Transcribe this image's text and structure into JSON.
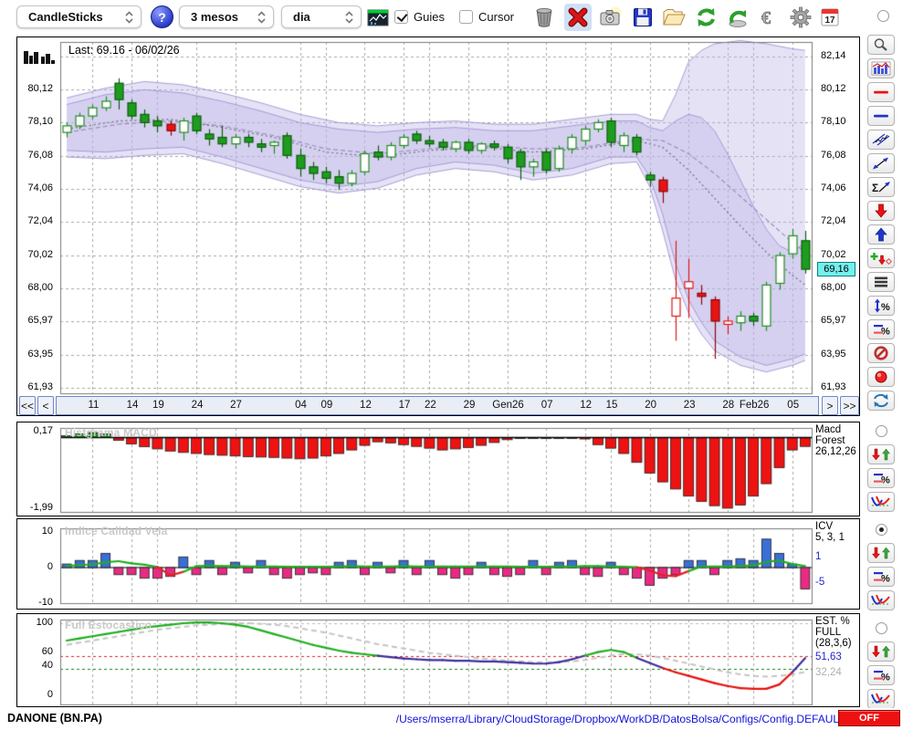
{
  "toolbar": {
    "chart_type": "CandleSticks",
    "period": "3 mesos",
    "interval": "dia",
    "help_label": "?",
    "guies_label": "Guies",
    "cursor_label": "Cursor"
  },
  "main_chart": {
    "last_label": "Last: 69.16 - 06/02/26",
    "last_price_tag": "69,16",
    "y_ticks": [
      {
        "label": "82,14",
        "v": 82.14,
        "right_only": true
      },
      {
        "label": "80,12",
        "v": 80.12
      },
      {
        "label": "78,10",
        "v": 78.1
      },
      {
        "label": "76,08",
        "v": 76.08
      },
      {
        "label": "74,06",
        "v": 74.06
      },
      {
        "label": "72,04",
        "v": 72.04
      },
      {
        "label": "70,02",
        "v": 70.02
      },
      {
        "label": "68,00",
        "v": 68.0
      },
      {
        "label": "65,97",
        "v": 65.97
      },
      {
        "label": "63,95",
        "v": 63.95
      },
      {
        "label": "61,93",
        "v": 61.93
      }
    ]
  },
  "date_nav": {
    "fast_back": "<<",
    "back": "<",
    "forward": ">",
    "fast_forward": ">>"
  },
  "macd_panel": {
    "title": "Histgrama MACD",
    "ticks": [
      {
        "label": "0,17",
        "v": 0.17
      },
      {
        "label": "-1,99",
        "v": -1.99
      }
    ],
    "right_lines": [
      "Macd",
      "Forest",
      "26,12,26"
    ]
  },
  "icv_panel": {
    "title": "Indice Calidad Vela",
    "ticks": [
      {
        "label": "10",
        "v": 10
      },
      {
        "label": "0",
        "v": 0
      },
      {
        "label": "-10",
        "v": -10
      }
    ],
    "right_lines": [
      "ICV",
      "5, 3, 1"
    ],
    "upper_label": "1",
    "lower_label": "-5"
  },
  "stoch_panel": {
    "title": "Full Estocastico",
    "ticks": [
      {
        "label": "100",
        "v": 100
      },
      {
        "label": "60",
        "v": 60
      },
      {
        "label": "40",
        "v": 40
      },
      {
        "label": "0",
        "v": 0
      }
    ],
    "right_lines": [
      "EST. %",
      "FULL",
      "(28,3,6)"
    ],
    "value_main": "51,63",
    "value_signal": "32,24"
  },
  "statusbar": {
    "symbol": "DANONE (BN.PA)",
    "config_path": "/Users/mserra/Library/CloudStorage/Dropbox/WorkDB/DatosBolsa/Configs/Config.DEFAULT.xml",
    "off_label": "OFF"
  },
  "colors": {
    "candle_green": "#1e9c1e",
    "candle_red": "#e81414",
    "band_purple": "#beb6eb",
    "bar_blue": "#3a6fd8",
    "bar_magenta": "#e82a84",
    "line_green": "#1fae1f",
    "line_blue": "#3a2f9e",
    "line_red": "#e81111",
    "tag_cyan": "#74efec",
    "path_blue": "#1111dd",
    "off_red": "#ee1111"
  },
  "chart_data": {
    "type": "candlestick",
    "title": "DANONE (BN.PA) daily, 3 months",
    "ylim_price": [
      61.93,
      82.14
    ],
    "ylim_macd": [
      -2.15,
      0.27
    ],
    "ylim_icv": [
      -11,
      11
    ],
    "ylim_stoch": [
      0,
      105
    ],
    "x_ticks": [
      {
        "label": "11",
        "i": 2
      },
      {
        "label": "14",
        "i": 5
      },
      {
        "label": "19",
        "i": 7
      },
      {
        "label": "24",
        "i": 10
      },
      {
        "label": "27",
        "i": 13
      },
      {
        "label": "04",
        "i": 18
      },
      {
        "label": "09",
        "i": 20
      },
      {
        "label": "12",
        "i": 23
      },
      {
        "label": "17",
        "i": 26
      },
      {
        "label": "22",
        "i": 28
      },
      {
        "label": "29",
        "i": 31
      },
      {
        "label": "Gen26",
        "i": 34
      },
      {
        "label": "07",
        "i": 37
      },
      {
        "label": "12",
        "i": 40
      },
      {
        "label": "15",
        "i": 42
      },
      {
        "label": "20",
        "i": 45
      },
      {
        "label": "23",
        "i": 48
      },
      {
        "label": "28",
        "i": 51
      },
      {
        "label": "Feb26",
        "i": 53
      },
      {
        "label": "05",
        "i": 56
      }
    ],
    "candles": [
      [
        77.5,
        78.1,
        77.2,
        77.9,
        "G"
      ],
      [
        77.9,
        78.7,
        77.7,
        78.5,
        "G"
      ],
      [
        78.5,
        79.2,
        78.3,
        79.0,
        "G"
      ],
      [
        79.0,
        79.7,
        78.8,
        79.4,
        "G"
      ],
      [
        80.5,
        80.8,
        78.9,
        79.5,
        "g"
      ],
      [
        79.3,
        79.5,
        78.3,
        78.5,
        "g"
      ],
      [
        78.6,
        78.9,
        77.8,
        78.1,
        "g"
      ],
      [
        78.2,
        78.5,
        77.5,
        77.9,
        "g"
      ],
      [
        78.0,
        78.2,
        77.3,
        77.6,
        "r"
      ],
      [
        77.5,
        78.4,
        77.0,
        78.2,
        "G"
      ],
      [
        78.5,
        78.7,
        77.4,
        77.6,
        "g"
      ],
      [
        77.4,
        77.7,
        76.7,
        77.1,
        "g"
      ],
      [
        77.2,
        77.9,
        76.6,
        76.8,
        "g"
      ],
      [
        76.8,
        77.4,
        76.5,
        77.2,
        "G"
      ],
      [
        77.2,
        77.4,
        76.6,
        76.9,
        "g"
      ],
      [
        76.8,
        77.1,
        76.3,
        76.6,
        "g"
      ],
      [
        76.7,
        77.0,
        76.2,
        76.9,
        "G"
      ],
      [
        77.3,
        77.5,
        75.9,
        76.1,
        "g"
      ],
      [
        76.1,
        76.5,
        74.8,
        75.3,
        "g"
      ],
      [
        75.4,
        75.7,
        74.6,
        75.0,
        "g"
      ],
      [
        75.1,
        75.4,
        74.4,
        74.7,
        "g"
      ],
      [
        74.8,
        75.2,
        74.0,
        74.4,
        "g"
      ],
      [
        74.4,
        75.2,
        74.2,
        75.0,
        "G"
      ],
      [
        75.1,
        76.4,
        74.9,
        76.2,
        "G"
      ],
      [
        76.3,
        76.7,
        75.8,
        76.0,
        "g"
      ],
      [
        76.0,
        76.9,
        75.8,
        76.7,
        "G"
      ],
      [
        76.7,
        77.4,
        76.5,
        77.2,
        "G"
      ],
      [
        77.4,
        77.6,
        76.8,
        77.0,
        "g"
      ],
      [
        77.0,
        77.3,
        76.6,
        76.8,
        "g"
      ],
      [
        76.9,
        77.1,
        76.4,
        76.6,
        "g"
      ],
      [
        76.5,
        77.0,
        76.3,
        76.9,
        "G"
      ],
      [
        76.9,
        77.1,
        76.2,
        76.4,
        "g"
      ],
      [
        76.4,
        76.9,
        76.2,
        76.8,
        "G"
      ],
      [
        76.8,
        77.0,
        76.4,
        76.6,
        "g"
      ],
      [
        76.6,
        76.8,
        75.6,
        75.9,
        "g"
      ],
      [
        76.3,
        76.5,
        74.6,
        75.4,
        "g"
      ],
      [
        75.4,
        75.9,
        74.8,
        75.7,
        "G"
      ],
      [
        76.3,
        76.5,
        75.0,
        75.2,
        "g"
      ],
      [
        75.3,
        76.7,
        75.1,
        76.5,
        "G"
      ],
      [
        76.5,
        77.4,
        76.2,
        77.2,
        "G"
      ],
      [
        77.0,
        77.9,
        76.7,
        77.7,
        "G"
      ],
      [
        77.7,
        78.3,
        77.5,
        78.1,
        "G"
      ],
      [
        78.2,
        78.4,
        76.6,
        76.9,
        "g"
      ],
      [
        76.7,
        77.5,
        76.3,
        77.3,
        "G"
      ],
      [
        77.2,
        77.4,
        76.1,
        76.3,
        "g"
      ],
      [
        74.9,
        75.1,
        74.2,
        74.6,
        "g"
      ],
      [
        74.6,
        74.8,
        73.2,
        73.9,
        "r"
      ],
      [
        66.3,
        70.9,
        64.8,
        67.4,
        "R"
      ],
      [
        68.0,
        69.8,
        66.2,
        68.4,
        "R"
      ],
      [
        67.7,
        68.2,
        67.0,
        67.5,
        "r"
      ],
      [
        67.3,
        67.5,
        63.7,
        66.0,
        "r"
      ],
      [
        65.8,
        66.3,
        65.2,
        66.0,
        "R"
      ],
      [
        65.9,
        66.6,
        65.4,
        66.3,
        "G"
      ],
      [
        66.3,
        66.5,
        65.7,
        66.0,
        "g"
      ],
      [
        65.7,
        68.4,
        65.4,
        68.2,
        "G"
      ],
      [
        68.3,
        70.2,
        67.9,
        70.0,
        "G"
      ],
      [
        70.1,
        71.6,
        69.8,
        71.2,
        "G"
      ],
      [
        70.9,
        71.5,
        68.9,
        69.16,
        "g"
      ]
    ],
    "band_outer_upper": [
      [
        0,
        79.6
      ],
      [
        3,
        80.2
      ],
      [
        6,
        80.6
      ],
      [
        9,
        80.4
      ],
      [
        12,
        79.9
      ],
      [
        15,
        79.3
      ],
      [
        18,
        78.6
      ],
      [
        21,
        78.1
      ],
      [
        24,
        77.9
      ],
      [
        27,
        78.1
      ],
      [
        30,
        78.2
      ],
      [
        33,
        78.0
      ],
      [
        36,
        78.0
      ],
      [
        39,
        78.3
      ],
      [
        42,
        78.6
      ],
      [
        44,
        78.6
      ],
      [
        45,
        78.3
      ],
      [
        46,
        78.2
      ],
      [
        47,
        79.8
      ],
      [
        48,
        81.8
      ],
      [
        49,
        82.5
      ],
      [
        50,
        82.9
      ],
      [
        52,
        83.1
      ],
      [
        54,
        82.9
      ],
      [
        56,
        82.6
      ],
      [
        57,
        82.5
      ]
    ],
    "band_outer_lower": [
      [
        0,
        76.0
      ],
      [
        3,
        75.9
      ],
      [
        6,
        76.1
      ],
      [
        9,
        76.2
      ],
      [
        12,
        75.6
      ],
      [
        15,
        74.9
      ],
      [
        18,
        74.2
      ],
      [
        21,
        73.8
      ],
      [
        24,
        74.1
      ],
      [
        27,
        74.9
      ],
      [
        30,
        75.3
      ],
      [
        33,
        75.1
      ],
      [
        36,
        74.6
      ],
      [
        39,
        74.9
      ],
      [
        42,
        75.6
      ],
      [
        44,
        75.7
      ],
      [
        45,
        74.2
      ],
      [
        46,
        71.5
      ],
      [
        47,
        68.5
      ],
      [
        48,
        66.5
      ],
      [
        49,
        65.2
      ],
      [
        50,
        64.2
      ],
      [
        52,
        63.3
      ],
      [
        54,
        62.9
      ],
      [
        56,
        63.3
      ],
      [
        57,
        63.6
      ]
    ],
    "band_inner_upper": [
      [
        0,
        79.2
      ],
      [
        3,
        79.8
      ],
      [
        6,
        80.1
      ],
      [
        9,
        79.9
      ],
      [
        12,
        79.4
      ],
      [
        15,
        78.8
      ],
      [
        18,
        78.1
      ],
      [
        21,
        77.7
      ],
      [
        24,
        77.5
      ],
      [
        27,
        77.7
      ],
      [
        30,
        77.8
      ],
      [
        33,
        77.6
      ],
      [
        36,
        77.6
      ],
      [
        39,
        77.9
      ],
      [
        42,
        78.2
      ],
      [
        44,
        78.2
      ],
      [
        45,
        77.8
      ],
      [
        46,
        77.6
      ],
      [
        47,
        78.2
      ],
      [
        48,
        78.6
      ],
      [
        49,
        78.4
      ],
      [
        50,
        77.6
      ],
      [
        51,
        76.2
      ],
      [
        52,
        74.6
      ],
      [
        53,
        73.0
      ],
      [
        54,
        71.6
      ],
      [
        55,
        70.6
      ],
      [
        56,
        70.2
      ],
      [
        57,
        70.8
      ]
    ],
    "band_inner_lower": [
      [
        0,
        76.4
      ],
      [
        3,
        76.3
      ],
      [
        6,
        76.5
      ],
      [
        9,
        76.6
      ],
      [
        12,
        76.0
      ],
      [
        15,
        75.3
      ],
      [
        18,
        74.6
      ],
      [
        21,
        74.2
      ],
      [
        24,
        74.5
      ],
      [
        27,
        75.3
      ],
      [
        30,
        75.7
      ],
      [
        33,
        75.5
      ],
      [
        36,
        75.0
      ],
      [
        39,
        75.3
      ],
      [
        42,
        76.0
      ],
      [
        44,
        76.0
      ],
      [
        45,
        74.8
      ],
      [
        46,
        72.5
      ],
      [
        47,
        69.5
      ],
      [
        48,
        67.3
      ],
      [
        49,
        65.9
      ],
      [
        50,
        64.8
      ],
      [
        52,
        63.8
      ],
      [
        54,
        63.3
      ],
      [
        56,
        63.7
      ],
      [
        57,
        64.0
      ]
    ],
    "ma_fast": [
      [
        0,
        77.5
      ],
      [
        4,
        78.0
      ],
      [
        8,
        78.2
      ],
      [
        12,
        77.9
      ],
      [
        16,
        77.3
      ],
      [
        20,
        76.5
      ],
      [
        24,
        76.2
      ],
      [
        28,
        76.5
      ],
      [
        32,
        76.7
      ],
      [
        36,
        76.5
      ],
      [
        40,
        76.6
      ],
      [
        44,
        77.1
      ],
      [
        46,
        77.0
      ],
      [
        48,
        76.2
      ],
      [
        50,
        75.0
      ],
      [
        52,
        73.6
      ],
      [
        54,
        72.2
      ],
      [
        56,
        70.8
      ],
      [
        57,
        70.2
      ]
    ],
    "ma_slow": [
      [
        0,
        77.7
      ],
      [
        4,
        78.2
      ],
      [
        8,
        78.3
      ],
      [
        12,
        77.8
      ],
      [
        16,
        77.2
      ],
      [
        20,
        76.3
      ],
      [
        24,
        76.0
      ],
      [
        28,
        76.4
      ],
      [
        32,
        76.6
      ],
      [
        36,
        76.3
      ],
      [
        40,
        76.5
      ],
      [
        44,
        77.0
      ],
      [
        46,
        76.6
      ],
      [
        48,
        75.2
      ],
      [
        50,
        73.5
      ],
      [
        52,
        71.8
      ],
      [
        54,
        70.2
      ],
      [
        56,
        68.8
      ],
      [
        57,
        68.2
      ]
    ],
    "macd": [
      0.05,
      0.1,
      0.14,
      0.1,
      -0.08,
      -0.18,
      -0.26,
      -0.32,
      -0.38,
      -0.42,
      -0.45,
      -0.48,
      -0.5,
      -0.52,
      -0.54,
      -0.55,
      -0.56,
      -0.58,
      -0.6,
      -0.58,
      -0.52,
      -0.45,
      -0.35,
      -0.22,
      -0.12,
      -0.15,
      -0.2,
      -0.25,
      -0.3,
      -0.35,
      -0.32,
      -0.28,
      -0.22,
      -0.14,
      -0.06,
      -0.02,
      -0.01,
      -0.02,
      -0.01,
      -0.02,
      -0.04,
      -0.2,
      -0.3,
      -0.45,
      -0.7,
      -1.0,
      -1.25,
      -1.45,
      -1.65,
      -1.8,
      -1.92,
      -1.99,
      -1.9,
      -1.65,
      -1.3,
      -0.85,
      -0.35,
      -0.25
    ],
    "icv_bars": [
      1,
      2,
      2,
      4,
      -2,
      -2,
      -3,
      -3,
      -2.5,
      3,
      -2,
      2,
      -2,
      1.5,
      -1.5,
      2,
      -2,
      -3,
      -2,
      -1.5,
      -2,
      1.5,
      2,
      -2,
      1.5,
      -1.5,
      2,
      -2,
      2,
      -2,
      -3,
      -2,
      1.5,
      -2,
      -2.5,
      -2,
      2,
      -2,
      1.5,
      2,
      -2,
      -2.5,
      1.5,
      -2,
      -3,
      -5,
      -3,
      -2,
      2,
      2,
      -2,
      2,
      2.5,
      2,
      8,
      4,
      1,
      -6
    ],
    "icv_line": [
      0.5,
      0.7,
      0.9,
      1.5,
      1.8,
      1.2,
      0.8,
      0.2,
      -2.2,
      -1.2,
      0.4,
      0.5,
      0.4,
      0.4,
      0.3,
      0.3,
      0.3,
      0.2,
      0.2,
      0.2,
      0.2,
      0.3,
      0.4,
      0.3,
      0.3,
      0.3,
      0.4,
      0.3,
      0.3,
      0.3,
      0.3,
      0.3,
      0.3,
      0.3,
      0.3,
      0.2,
      0.2,
      0.2,
      0.3,
      0.3,
      0.4,
      0.4,
      0.3,
      0.2,
      0.1,
      -0.8,
      -2.2,
      -2.4,
      -1.0,
      0.3,
      0.3,
      0.3,
      0.4,
      0.6,
      1.6,
      2.0,
      1.0,
      0.4
    ],
    "icv_line_red_ranges": [
      [
        7,
        9
      ],
      [
        44,
        48
      ]
    ],
    "stoch_k": [
      76,
      79,
      82,
      85,
      88,
      91,
      94,
      96,
      98,
      100,
      101,
      101,
      100,
      98,
      95,
      90,
      85,
      80,
      75,
      70,
      66,
      62,
      59,
      57,
      55,
      53,
      51,
      50,
      49,
      49,
      48,
      48,
      47,
      47,
      46,
      45,
      44,
      44,
      46,
      50,
      55,
      60,
      63,
      60,
      52,
      45,
      38,
      32,
      27,
      22,
      17,
      13,
      10,
      9,
      9,
      15,
      32,
      51.63
    ],
    "stoch_d": [
      70,
      73,
      76,
      79,
      82,
      85,
      88,
      91,
      93,
      95,
      97,
      98,
      99,
      100,
      100,
      99,
      98,
      96,
      93,
      90,
      87,
      83,
      79,
      75,
      71,
      68,
      65,
      62,
      59,
      57,
      55,
      53,
      51,
      50,
      48,
      47,
      46,
      46,
      46,
      47,
      49,
      52,
      55,
      57,
      57,
      55,
      52,
      48,
      44,
      40,
      36,
      32,
      29,
      27,
      26,
      27,
      29,
      32.24
    ],
    "stoch_thresholds": {
      "upper": 55,
      "lower": 37
    }
  }
}
